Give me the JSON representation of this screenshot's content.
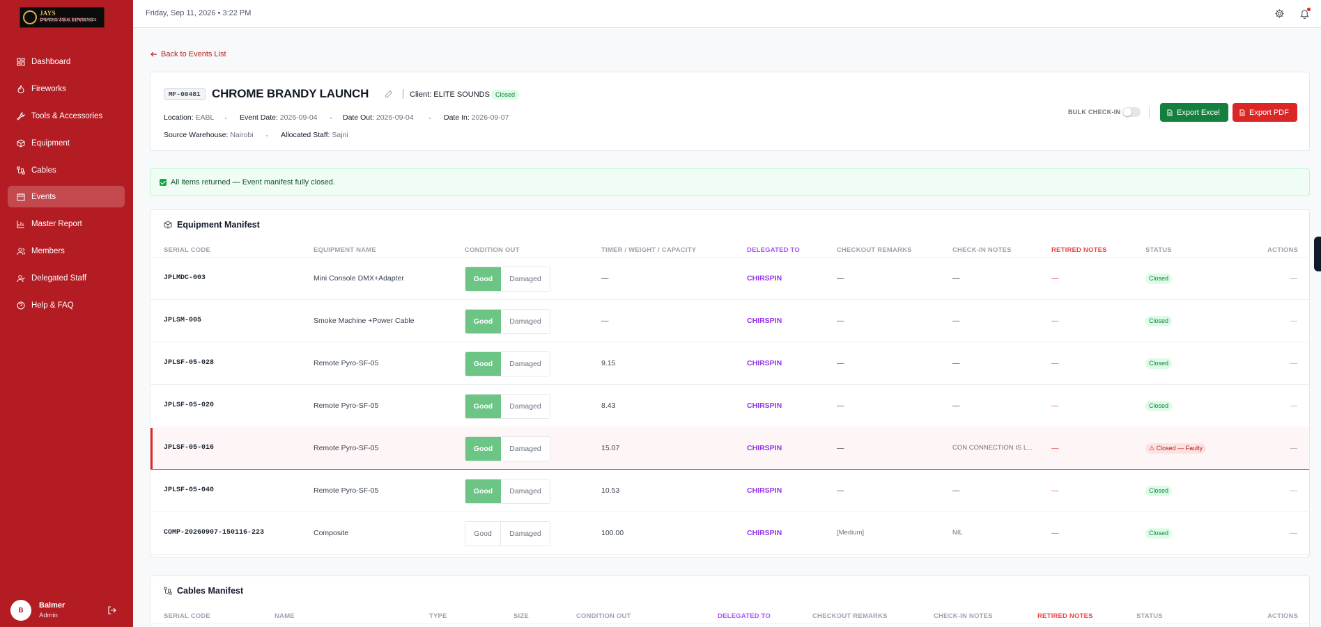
{
  "brand": {
    "logo_line1": "JAYS",
    "logo_line1b": "PYROTECHNICS",
    "logo_line2": "CREATING VISUAL EXPERIENCES"
  },
  "sidebar": {
    "items": [
      {
        "label": "Dashboard",
        "icon": "dashboard-icon"
      },
      {
        "label": "Fireworks",
        "icon": "flame-icon"
      },
      {
        "label": "Tools & Accessories",
        "icon": "wrench-icon"
      },
      {
        "label": "Equipment",
        "icon": "box-icon"
      },
      {
        "label": "Cables",
        "icon": "cable-icon"
      },
      {
        "label": "Events",
        "icon": "calendar-icon",
        "active": true
      },
      {
        "label": "Master Report",
        "icon": "chart-icon"
      },
      {
        "label": "Members",
        "icon": "users-icon"
      },
      {
        "label": "Delegated Staff",
        "icon": "user-check-icon"
      },
      {
        "label": "Help & FAQ",
        "icon": "help-icon"
      }
    ]
  },
  "user": {
    "initial": "B",
    "name": "Balmer",
    "role": "Admin"
  },
  "topbar": {
    "datetime": "Friday, Sep 11, 2026  •  3:22 PM"
  },
  "back_label": "Back to Events List",
  "event": {
    "code": "MF-00481",
    "name": "CHROME BRANDY LAUNCH",
    "client": "Client: ELITE SOUNDS",
    "status": "Closed",
    "location_label": "Location:",
    "location": "EABL",
    "event_date_label": "Event Date:",
    "event_date": "2026-09-04",
    "date_out_label": "Date Out:",
    "date_out": "2026-09-04",
    "date_in_label": "Date In:",
    "date_in": "2026-09-07",
    "warehouse_label": "Source Warehouse:",
    "warehouse": "Nairobi",
    "staff_label": "Allocated Staff:",
    "staff": "Sajni",
    "bulk_label": "BULK CHECK-IN",
    "bulk_checkin": false,
    "export_excel": "Export Excel",
    "export_pdf": "Export PDF"
  },
  "banner": "All items returned — Event manifest fully closed.",
  "equipment": {
    "title": "Equipment Manifest",
    "columns": [
      "SERIAL CODE",
      "EQUIPMENT NAME",
      "CONDITION OUT",
      "TIMER / WEIGHT / CAPACITY",
      "DELEGATED TO",
      "CHECKOUT REMARKS",
      "CHECK-IN NOTES",
      "RETIRED NOTES",
      "STATUS",
      "ACTIONS"
    ],
    "good_label": "Good",
    "damaged_label": "Damaged",
    "rows": [
      {
        "serial": "JPLMDC-003",
        "name": "Mini Console DMX+Adapter",
        "condition": "Good",
        "timer": "—",
        "delegated": "CHIRSPIN",
        "checkout": "—",
        "checkin": "—",
        "retired": "—",
        "status": "Closed",
        "action": "—"
      },
      {
        "serial": "JPLSM-005",
        "name": "Smoke Machine +Power Cable",
        "condition": "Good",
        "timer": "—",
        "delegated": "CHIRSPIN",
        "checkout": "—",
        "checkin": "—",
        "retired": "—",
        "status": "Closed",
        "action": "—"
      },
      {
        "serial": "JPLSF-05-028",
        "name": "Remote Pyro-SF-05",
        "condition": "Good",
        "timer": "9.15",
        "delegated": "CHIRSPIN",
        "checkout": "—",
        "checkin": "—",
        "retired": "—",
        "status": "Closed",
        "action": "—"
      },
      {
        "serial": "JPLSF-05-020",
        "name": "Remote Pyro-SF-05",
        "condition": "Good",
        "timer": "8.43",
        "delegated": "CHIRSPIN",
        "checkout": "—",
        "checkin": "—",
        "retired": "—",
        "status": "Closed",
        "action": "—"
      },
      {
        "serial": "JPLSF-05-016",
        "name": "Remote Pyro-SF-05",
        "condition": "Good",
        "timer": "15.07",
        "delegated": "CHIRSPIN",
        "checkout": "—",
        "checkin": "CON CONNECTION IS L...",
        "retired": "—",
        "status": "⚠ Closed — Faulty",
        "faulty": true,
        "action": "—"
      },
      {
        "serial": "JPLSF-05-040",
        "name": "Remote Pyro-SF-05",
        "condition": "Good",
        "timer": "10.53",
        "delegated": "CHIRSPIN",
        "checkout": "—",
        "checkin": "—",
        "retired": "—",
        "status": "Closed",
        "action": "—"
      },
      {
        "serial": "COMP-20260907-150116-223",
        "name": "Composite",
        "condition": "",
        "timer": "100.00",
        "delegated": "CHIRSPIN",
        "checkout": "[Medium]",
        "checkin": "NIL",
        "retired": "—",
        "status": "Closed",
        "action": "—"
      }
    ]
  },
  "cables": {
    "title": "Cables Manifest",
    "columns": [
      "SERIAL CODE",
      "NAME",
      "TYPE",
      "SIZE",
      "CONDITION OUT",
      "DELEGATED TO",
      "CHECKOUT REMARKS",
      "CHECK-IN NOTES",
      "RETIRED NOTES",
      "STATUS",
      "ACTIONS"
    ]
  }
}
